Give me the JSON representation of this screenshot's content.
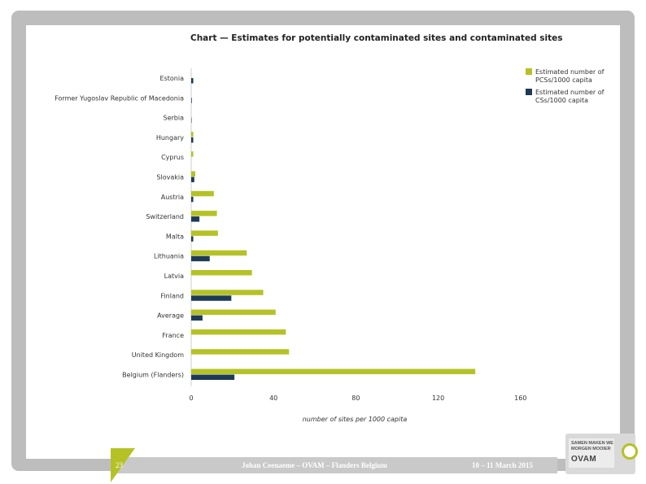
{
  "slide": {
    "page_number": "23",
    "presenter": "Johan Ceenaeme – OVAM – Flanders Belgium",
    "date": "10 – 11 March 2015",
    "logo": {
      "line1": "SAMEN MAKEN WE",
      "line2": "MORGEN MOOIER",
      "brand": "OVAM"
    }
  },
  "colors": {
    "pcs": "#b5c226",
    "cs": "#1f3a55",
    "frame": "#bdbdbd"
  },
  "chart_data": {
    "type": "bar",
    "orientation": "horizontal",
    "title": "Chart — Estimates for potentially contaminated sites and contaminated sites",
    "xlabel": "number of sites per 1000 capita",
    "ylabel": "",
    "xlim": [
      0,
      160
    ],
    "xticks": [
      0,
      40,
      80,
      120,
      160
    ],
    "legend_position": "top-right",
    "categories": [
      "Estonia",
      "Former Yugoslav Republic of Macedonia",
      "Serbia",
      "Hungary",
      "Cyprus",
      "Slovakia",
      "Austria",
      "Switzerland",
      "Malta",
      "Lithuania",
      "Latvia",
      "Finland",
      "Average",
      "France",
      "United Kingdom",
      "Belgium (Flanders)"
    ],
    "series": [
      {
        "name": "Estimated number of PCSs/1000 capita",
        "values": [
          0,
          0,
          0,
          1,
          1,
          2,
          11,
          12.5,
          13,
          27,
          29.5,
          35,
          41,
          46,
          47.5,
          138
        ]
      },
      {
        "name": "Estimated number of CSs/1000 capita",
        "values": [
          1,
          0.3,
          0.2,
          1,
          0,
          1.5,
          1,
          4,
          1,
          9,
          0,
          19.5,
          5.5,
          0,
          0,
          21
        ]
      }
    ]
  }
}
